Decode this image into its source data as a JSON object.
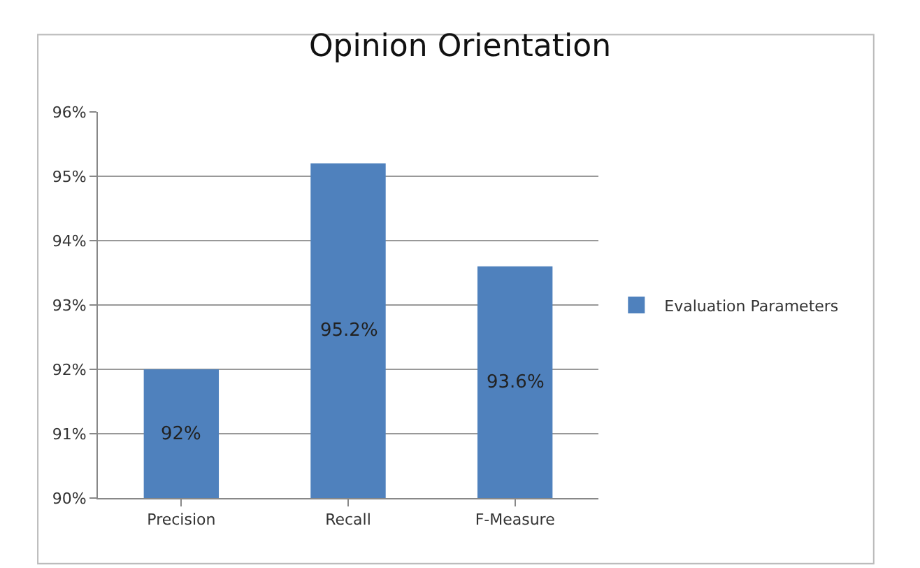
{
  "chart_data": {
    "type": "bar",
    "title": "Opinion Orientation",
    "categories": [
      "Precision",
      "Recall",
      "F-Measure"
    ],
    "series": [
      {
        "name": "Evaluation Parameters",
        "color": "#4f81bd",
        "values": [
          92,
          95.2,
          93.6
        ],
        "value_labels": [
          "92%",
          "95.2%",
          "93.6%"
        ]
      }
    ],
    "ylim": [
      90,
      96
    ],
    "yticks": [
      {
        "value": 90,
        "label": "90%"
      },
      {
        "value": 91,
        "label": "91%"
      },
      {
        "value": 92,
        "label": "92%"
      },
      {
        "value": 93,
        "label": "93%"
      },
      {
        "value": 94,
        "label": "94%"
      },
      {
        "value": 95,
        "label": "95%"
      },
      {
        "value": 96,
        "label": "96%"
      }
    ],
    "grid": "y",
    "legend": "right"
  }
}
